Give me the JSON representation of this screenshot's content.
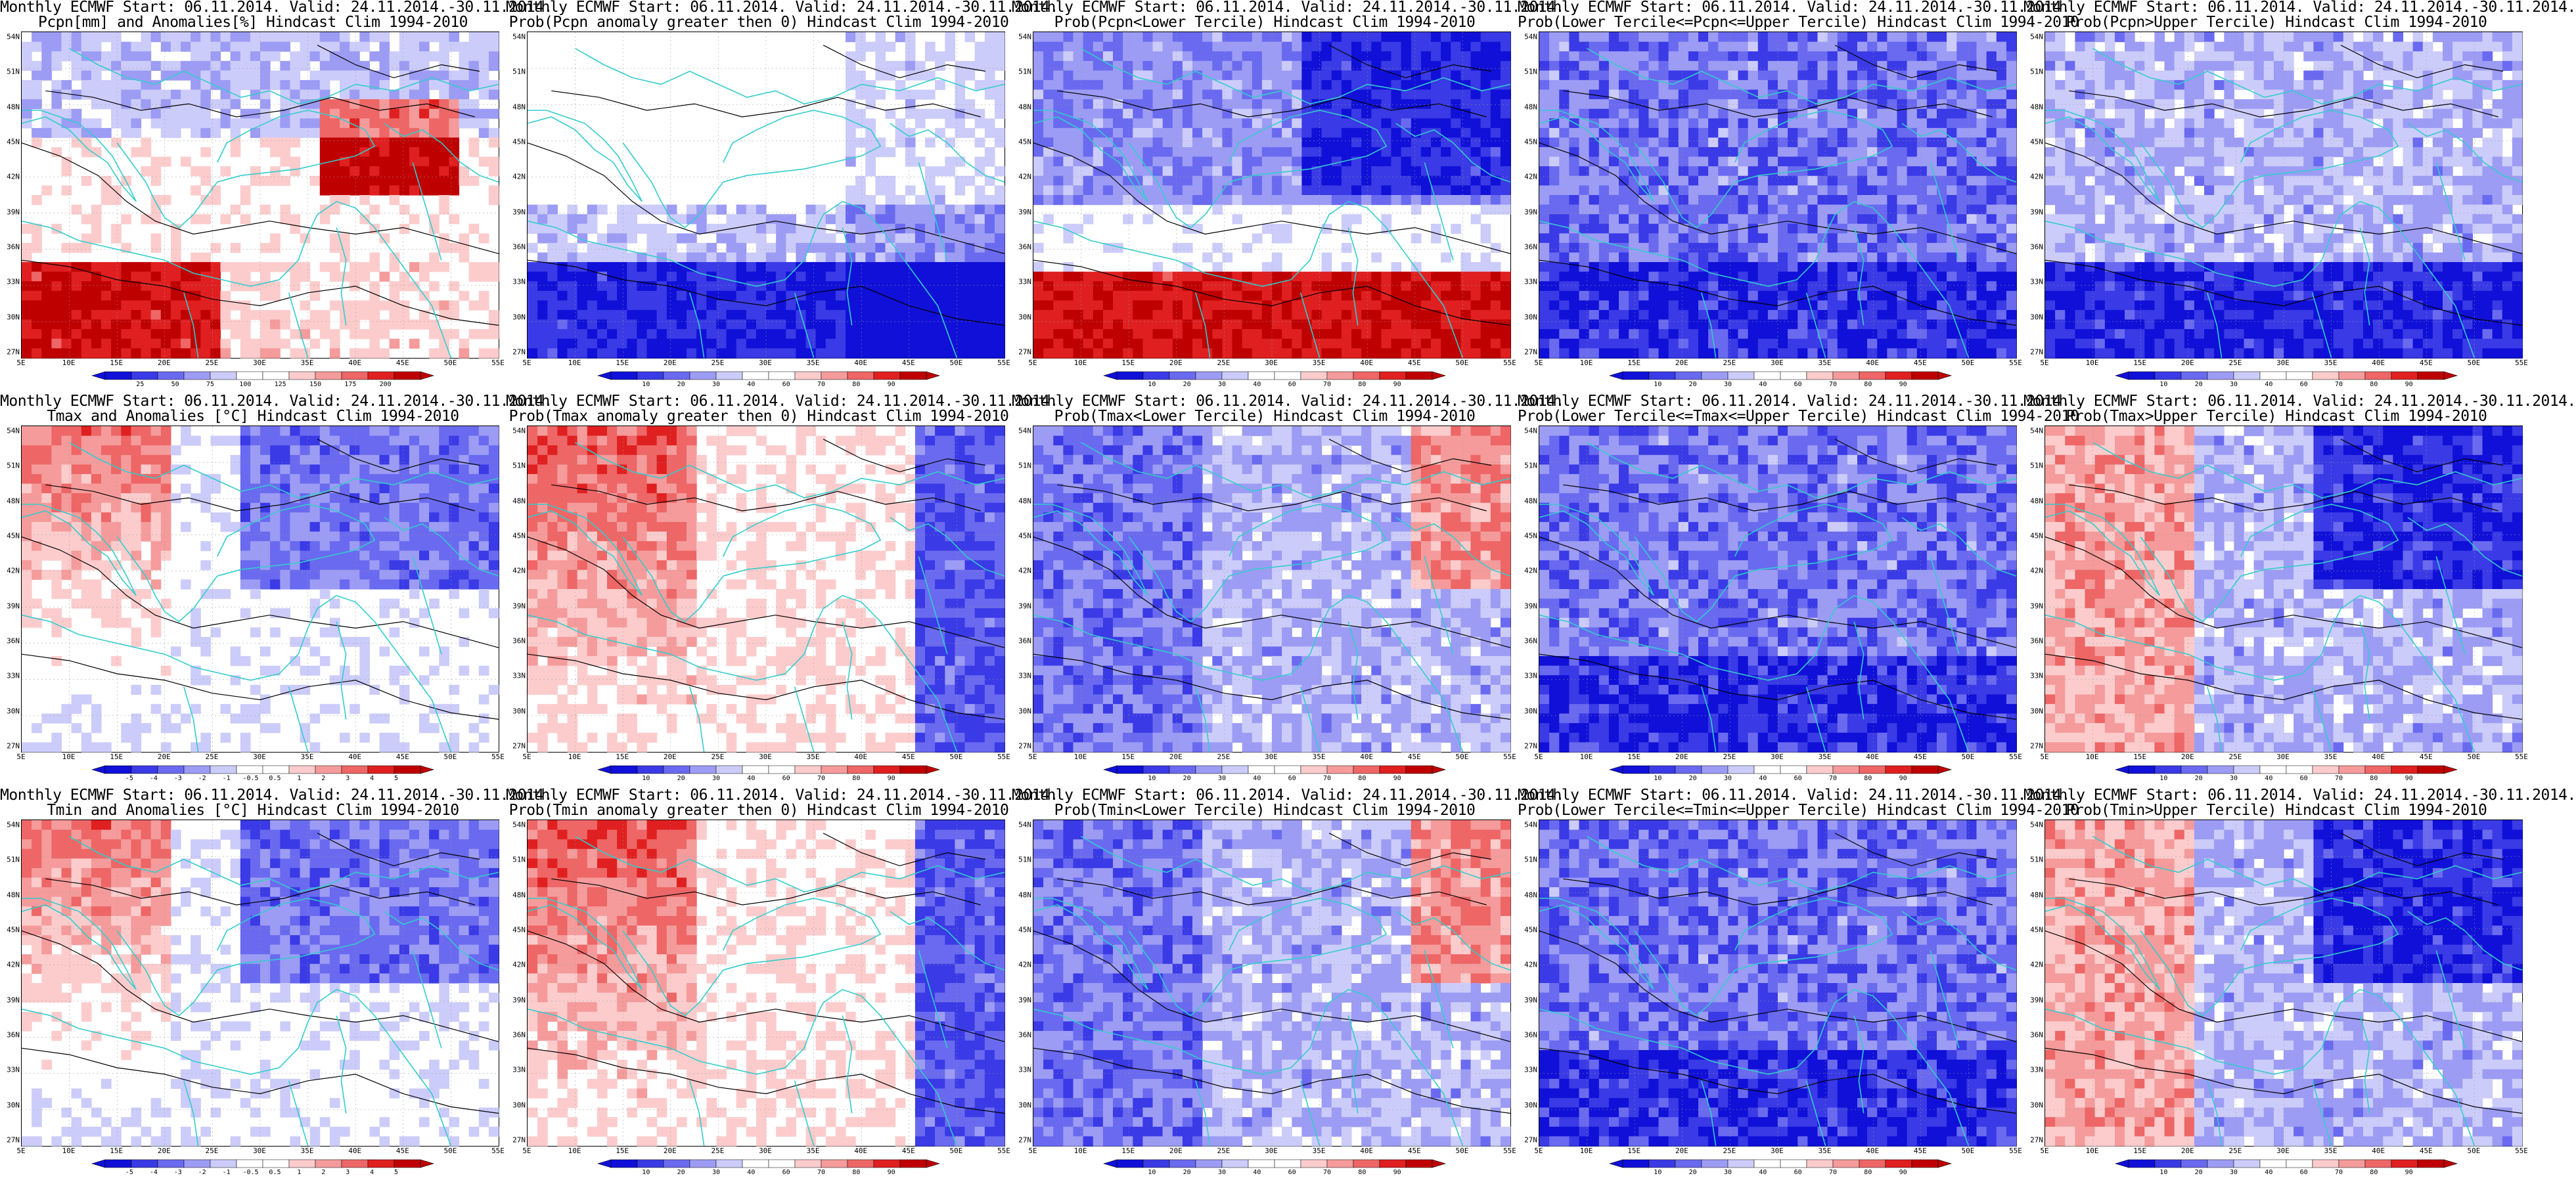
{
  "lat_labels": [
    "54N",
    "51N",
    "48N",
    "45N",
    "42N",
    "39N",
    "36N",
    "33N",
    "30N",
    "27N"
  ],
  "lon_labels": [
    "5E",
    "10E",
    "15E",
    "20E",
    "25E",
    "30E",
    "35E",
    "40E",
    "45E",
    "50E",
    "55E"
  ],
  "colors": {
    "coast": "#33cccc",
    "contour": "#000000",
    "blue_strong": "#0000cc",
    "red_strong": "#cc0000"
  },
  "palettes": {
    "prob": [
      "#1010d8",
      "#3a3ae6",
      "#6a6af0",
      "#9c9cf5",
      "#ccccfa",
      "#ffffff",
      "#ffffff",
      "#fccccc",
      "#f59b9b",
      "#ee6666",
      "#e02020",
      "#bf0000"
    ],
    "pcpn": [
      "#1010d8",
      "#3a3ae6",
      "#6a6af0",
      "#9c9cf5",
      "#ccccfa",
      "#ffffff",
      "#ffffff",
      "#fccccc",
      "#f59b9b",
      "#ee6666",
      "#e02020",
      "#bf0000"
    ],
    "temp": [
      "#1010d8",
      "#3a3ae6",
      "#6a6af0",
      "#9c9cf5",
      "#ccccfa",
      "#ffffff",
      "#ffffff",
      "#fccccc",
      "#f59b9b",
      "#ee6666",
      "#e02020",
      "#bf0000"
    ]
  },
  "scales": {
    "prob": [
      "10",
      "20",
      "30",
      "40",
      "60",
      "70",
      "80",
      "90"
    ],
    "pcpn": [
      "25",
      "50",
      "75",
      "100",
      "125",
      "150",
      "175",
      "200"
    ],
    "temp": [
      "-5",
      "-4",
      "-3",
      "-2",
      "-1",
      "-0.5",
      "0.5",
      "1",
      "2",
      "3",
      "4",
      "5"
    ]
  },
  "panels": [
    {
      "id": "r1c1",
      "title1": "Monthly ECMWF Start: 06.11.2014. Valid: 24.11.2014.-30.11.2014.",
      "title2": "Pcpn[mm] and Anomalies[%] Hindcast Clim 1994-2010",
      "scale": "pcpn",
      "pattern": "pcpn_anom",
      "seed": 11
    },
    {
      "id": "r1c2",
      "title1": "Monthly ECMWF Start: 06.11.2014. Valid: 24.11.2014.-30.11.2014.",
      "title2": "Prob(Pcpn anomaly greater then 0) Hindcast Clim 1994-2010",
      "scale": "prob",
      "pattern": "pcpn_pos",
      "seed": 12
    },
    {
      "id": "r1c3",
      "title1": "Monthly ECMWF Start: 06.11.2014. Valid: 24.11.2014.-30.11.2014.",
      "title2": "Prob(Pcpn<Lower Tercile) Hindcast Clim 1994-2010",
      "scale": "prob",
      "pattern": "pcpn_low",
      "seed": 13
    },
    {
      "id": "r1c4",
      "title1": "Monthly ECMWF Start: 06.11.2014. Valid: 24.11.2014.-30.11.2014.",
      "title2": "Prob(Lower Tercile<=Pcpn<=Upper Tercile) Hindcast Clim 1994-2010",
      "scale": "prob",
      "pattern": "mid_blue",
      "seed": 14
    },
    {
      "id": "r1c5",
      "title1": "Monthly ECMWF Start: 06.11.2014. Valid: 24.11.2014.-30.11.2014.",
      "title2": "Prob(Pcpn>Upper Tercile) Hindcast Clim 1994-2010",
      "scale": "prob",
      "pattern": "pcpn_up",
      "seed": 15
    },
    {
      "id": "r2c1",
      "title1": "Monthly ECMWF Start: 06.11.2014. Valid: 24.11.2014.-30.11.2014.",
      "title2": "Tmax and Anomalies [°C] Hindcast Clim 1994-2010",
      "scale": "temp",
      "pattern": "temp_anom",
      "seed": 21
    },
    {
      "id": "r2c2",
      "title1": "Monthly ECMWF Start: 06.11.2014. Valid: 24.11.2014.-30.11.2014.",
      "title2": "Prob(Tmax anomaly greater then 0) Hindcast Clim 1994-2010",
      "scale": "prob",
      "pattern": "temp_pos",
      "seed": 22
    },
    {
      "id": "r2c3",
      "title1": "Monthly ECMWF Start: 06.11.2014. Valid: 24.11.2014.-30.11.2014.",
      "title2": "Prob(Tmax<Lower Tercile) Hindcast Clim 1994-2010",
      "scale": "prob",
      "pattern": "temp_low",
      "seed": 23
    },
    {
      "id": "r2c4",
      "title1": "Monthly ECMWF Start: 06.11.2014. Valid: 24.11.2014.-30.11.2014.",
      "title2": "Prob(Lower Tercile<=Tmax<=Upper Tercile) Hindcast Clim 1994-2010",
      "scale": "prob",
      "pattern": "mid_blue",
      "seed": 24
    },
    {
      "id": "r2c5",
      "title1": "Monthly ECMWF Start: 06.11.2014. Valid: 24.11.2014.-30.11.2014.",
      "title2": "Prob(Tmax>Upper Tercile) Hindcast Clim 1994-2010",
      "scale": "prob",
      "pattern": "temp_up",
      "seed": 25
    },
    {
      "id": "r3c1",
      "title1": "Monthly ECMWF Start: 06.11.2014. Valid: 24.11.2014.-30.11.2014.",
      "title2": "Tmin and Anomalies [°C] Hindcast Clim 1994-2010",
      "scale": "temp",
      "pattern": "temp_anom",
      "seed": 31
    },
    {
      "id": "r3c2",
      "title1": "Monthly ECMWF Start: 06.11.2014. Valid: 24.11.2014.-30.11.2014.",
      "title2": "Prob(Tmin anomaly greater then 0) Hindcast Clim 1994-2010",
      "scale": "prob",
      "pattern": "temp_pos",
      "seed": 32
    },
    {
      "id": "r3c3",
      "title1": "Monthly ECMWF Start: 06.11.2014. Valid: 24.11.2014.-30.11.2014.",
      "title2": "Prob(Tmin<Lower Tercile) Hindcast Clim 1994-2010",
      "scale": "prob",
      "pattern": "temp_low",
      "seed": 33
    },
    {
      "id": "r3c4",
      "title1": "Monthly ECMWF Start: 06.11.2014. Valid: 24.11.2014.-30.11.2014.",
      "title2": "Prob(Lower Tercile<=Tmin<=Upper Tercile) Hindcast Clim 1994-2010",
      "scale": "prob",
      "pattern": "mid_blue",
      "seed": 34
    },
    {
      "id": "r3c5",
      "title1": "Monthly ECMWF Start: 06.11.2014. Valid: 24.11.2014.-30.11.2014.",
      "title2": "Prob(Tmin>Upper Tercile) Hindcast Clim 1994-2010",
      "scale": "prob",
      "pattern": "temp_up",
      "seed": 35
    }
  ]
}
